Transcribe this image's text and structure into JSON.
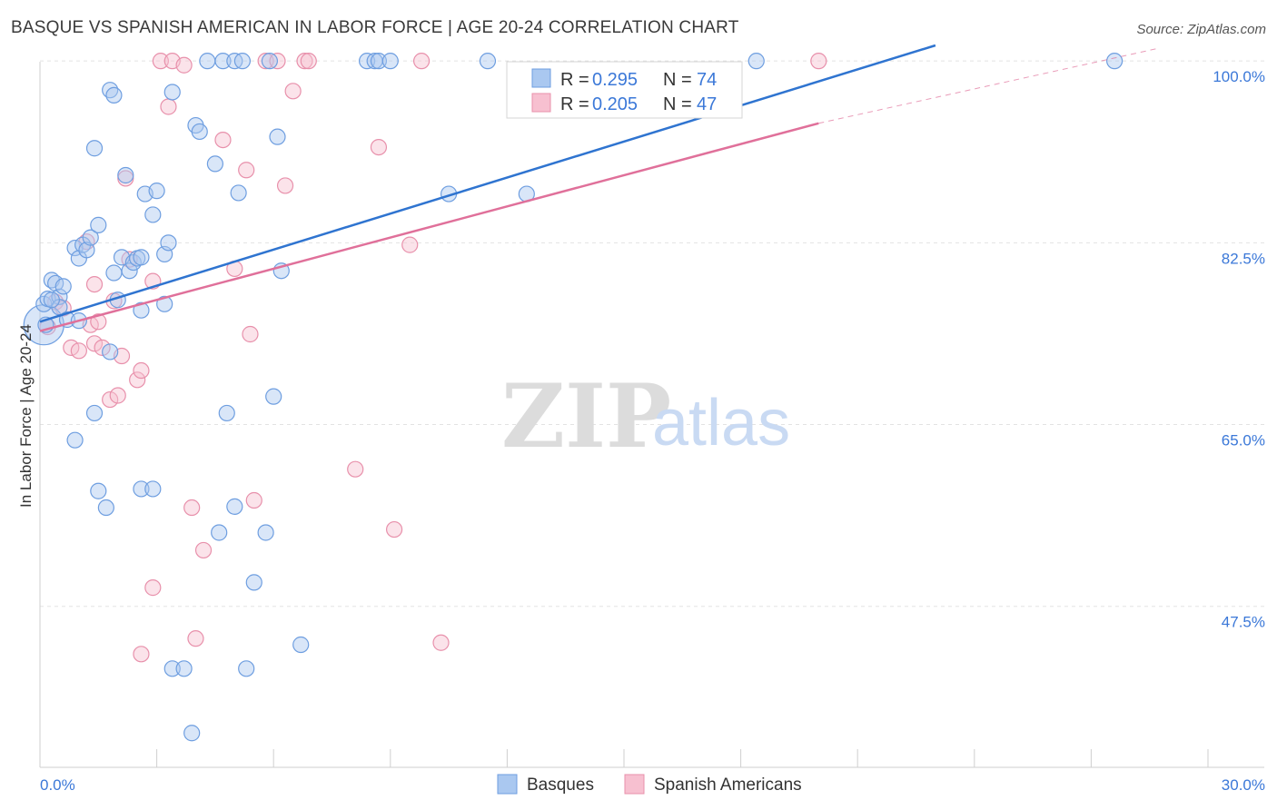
{
  "header": {
    "title": "BASQUE VS SPANISH AMERICAN IN LABOR FORCE | AGE 20-24 CORRELATION CHART",
    "source": "Source: ZipAtlas.com"
  },
  "watermark": {
    "zip": "ZIP",
    "atlas": "atlas"
  },
  "legend": {
    "rows": [
      {
        "r_label": "R =",
        "r_value": "0.295",
        "n_label": "N =",
        "n_value": "74"
      },
      {
        "r_label": "R =",
        "r_value": "0.205",
        "n_label": "N =",
        "n_value": "47"
      }
    ]
  },
  "bottom_legend": {
    "series1": "Basques",
    "series2": "Spanish Americans"
  },
  "colors": {
    "basque_fill": "#aac8f0",
    "basque_stroke": "#6e9ee0",
    "basque_line": "#2f74d0",
    "spanish_fill": "#f7c0d0",
    "spanish_stroke": "#e890ab",
    "spanish_line": "#e0709a",
    "tick_text": "#3b78d8",
    "grid": "#e3e3e3"
  },
  "chart_data": {
    "type": "scatter",
    "title": "BASQUE VS SPANISH AMERICAN IN LABOR FORCE | AGE 20-24 CORRELATION CHART",
    "xlabel": "",
    "ylabel": "In Labor Force | Age 20-24",
    "xlim": [
      0,
      30
    ],
    "ylim": [
      32,
      101.5
    ],
    "x_tick_labels": [
      {
        "value": 0,
        "label": "0.0%"
      },
      {
        "value": 30,
        "label": "30.0%"
      }
    ],
    "y_tick_labels": [
      {
        "value": 100,
        "label": "100.0%"
      },
      {
        "value": 82.5,
        "label": "82.5%"
      },
      {
        "value": 65,
        "label": "65.0%"
      },
      {
        "value": 47.5,
        "label": "47.5%"
      }
    ],
    "grid": true,
    "series": [
      {
        "name": "Basques",
        "R": 0.295,
        "N": 74,
        "trend": {
          "x": [
            0,
            23
          ],
          "y": [
            74.9,
            101.5
          ],
          "dashed_to": null
        },
        "points": [
          [
            0.1,
            76.6
          ],
          [
            0.2,
            77.1
          ],
          [
            0.3,
            78.9
          ],
          [
            0.4,
            78.6
          ],
          [
            0.5,
            77.3
          ],
          [
            0.5,
            76.3
          ],
          [
            0.6,
            78.3
          ],
          [
            0.7,
            75.1
          ],
          [
            0.9,
            82.0
          ],
          [
            1.0,
            81.0
          ],
          [
            1.1,
            82.3
          ],
          [
            1.2,
            81.8
          ],
          [
            1.3,
            83.0
          ],
          [
            1.0,
            75.0
          ],
          [
            1.4,
            66.1
          ],
          [
            1.5,
            58.6
          ],
          [
            0.9,
            63.5
          ],
          [
            1.5,
            84.2
          ],
          [
            1.4,
            91.6
          ],
          [
            1.7,
            57.0
          ],
          [
            1.8,
            72.0
          ],
          [
            1.8,
            97.2
          ],
          [
            1.9,
            96.7
          ],
          [
            1.9,
            79.6
          ],
          [
            2.0,
            77.0
          ],
          [
            2.1,
            81.1
          ],
          [
            2.2,
            89.0
          ],
          [
            2.3,
            79.8
          ],
          [
            2.4,
            80.6
          ],
          [
            2.5,
            81.0
          ],
          [
            2.6,
            58.8
          ],
          [
            2.6,
            81.1
          ],
          [
            2.6,
            76.0
          ],
          [
            2.7,
            87.2
          ],
          [
            2.9,
            58.8
          ],
          [
            2.9,
            85.2
          ],
          [
            3.0,
            87.5
          ],
          [
            3.2,
            81.4
          ],
          [
            3.2,
            76.6
          ],
          [
            3.3,
            82.5
          ],
          [
            3.4,
            97.0
          ],
          [
            3.4,
            41.5
          ],
          [
            3.7,
            41.5
          ],
          [
            3.9,
            35.3
          ],
          [
            4.0,
            93.8
          ],
          [
            4.1,
            93.2
          ],
          [
            4.3,
            100.0
          ],
          [
            4.5,
            90.1
          ],
          [
            4.6,
            54.6
          ],
          [
            4.7,
            100.0
          ],
          [
            4.8,
            66.1
          ],
          [
            5.0,
            100.0
          ],
          [
            5.0,
            57.1
          ],
          [
            5.1,
            87.3
          ],
          [
            5.2,
            100.0
          ],
          [
            5.3,
            41.5
          ],
          [
            5.5,
            49.8
          ],
          [
            5.8,
            54.6
          ],
          [
            5.9,
            100.0
          ],
          [
            6.0,
            67.7
          ],
          [
            6.1,
            92.7
          ],
          [
            6.2,
            79.8
          ],
          [
            6.7,
            43.8
          ],
          [
            8.4,
            100.0
          ],
          [
            8.6,
            100.0
          ],
          [
            8.7,
            100.0
          ],
          [
            9.0,
            100.0
          ],
          [
            10.5,
            87.2
          ],
          [
            11.5,
            100.0
          ],
          [
            12.5,
            87.2
          ],
          [
            18.4,
            100.0
          ],
          [
            27.6,
            100.0
          ],
          [
            0.15,
            74.6
          ],
          [
            0.3,
            77.0
          ]
        ],
        "highlight": {
          "x": 0.1,
          "y": 74.6
        }
      },
      {
        "name": "Spanish Americans",
        "R": 0.205,
        "N": 47,
        "trend": {
          "x": [
            0,
            20
          ],
          "y": [
            74.0,
            94.0
          ],
          "dashed_x": [
            20,
            28.7
          ],
          "dashed_y": [
            94.0,
            101.2
          ]
        },
        "points": [
          [
            0.2,
            74.4
          ],
          [
            0.4,
            76.8
          ],
          [
            0.6,
            76.2
          ],
          [
            0.8,
            72.4
          ],
          [
            1.0,
            72.1
          ],
          [
            1.2,
            82.6
          ],
          [
            1.3,
            74.6
          ],
          [
            1.4,
            78.5
          ],
          [
            1.4,
            72.8
          ],
          [
            1.6,
            72.4
          ],
          [
            1.8,
            67.4
          ],
          [
            1.9,
            76.9
          ],
          [
            2.0,
            67.8
          ],
          [
            2.1,
            71.6
          ],
          [
            2.2,
            88.7
          ],
          [
            2.3,
            80.9
          ],
          [
            2.5,
            69.3
          ],
          [
            2.6,
            70.2
          ],
          [
            2.6,
            42.9
          ],
          [
            2.9,
            78.8
          ],
          [
            2.9,
            49.3
          ],
          [
            3.1,
            100.0
          ],
          [
            3.3,
            95.6
          ],
          [
            3.4,
            100.0
          ],
          [
            3.7,
            99.6
          ],
          [
            3.9,
            57.0
          ],
          [
            4.0,
            44.4
          ],
          [
            4.2,
            52.9
          ],
          [
            4.7,
            92.4
          ],
          [
            5.0,
            80.0
          ],
          [
            5.3,
            89.5
          ],
          [
            5.4,
            73.7
          ],
          [
            5.5,
            57.7
          ],
          [
            5.8,
            100.0
          ],
          [
            6.1,
            100.0
          ],
          [
            6.3,
            88.0
          ],
          [
            6.5,
            97.1
          ],
          [
            6.8,
            100.0
          ],
          [
            6.9,
            100.0
          ],
          [
            8.1,
            60.7
          ],
          [
            8.7,
            91.7
          ],
          [
            9.1,
            54.9
          ],
          [
            9.5,
            82.3
          ],
          [
            9.8,
            100.0
          ],
          [
            10.3,
            44.0
          ],
          [
            20.0,
            100.0
          ],
          [
            1.5,
            74.9
          ]
        ]
      }
    ]
  }
}
